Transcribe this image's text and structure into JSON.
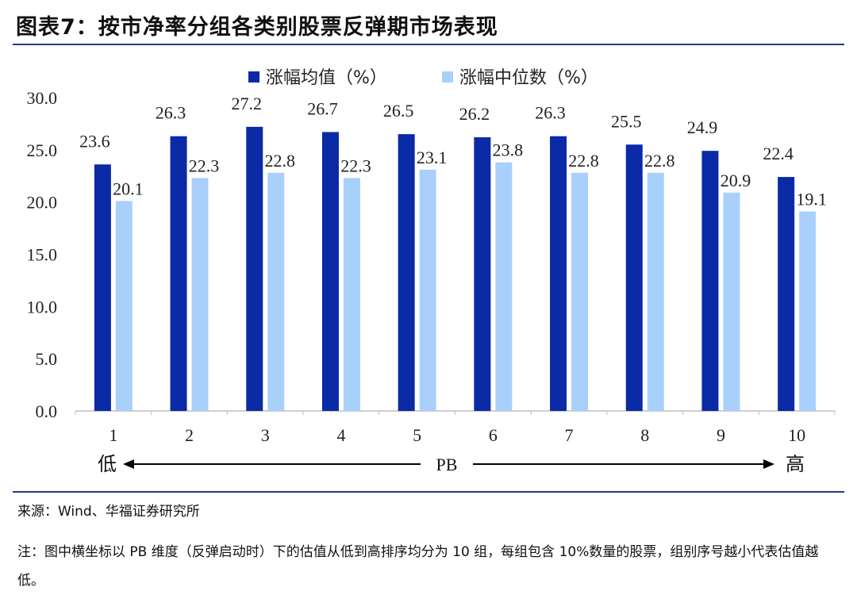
{
  "title": "图表7：按市净率分组各类别股票反弹期市场表现",
  "chart_data": {
    "type": "bar",
    "categories": [
      "1",
      "2",
      "3",
      "4",
      "5",
      "6",
      "7",
      "8",
      "9",
      "10"
    ],
    "series": [
      {
        "name": "涨幅均值（%）",
        "color": "#0a2aa6",
        "values": [
          23.6,
          26.3,
          27.2,
          26.7,
          26.5,
          26.2,
          26.3,
          25.5,
          24.9,
          22.4
        ]
      },
      {
        "name": "涨幅中位数（%）",
        "color": "#a9d0fb",
        "values": [
          20.1,
          22.3,
          22.8,
          22.3,
          23.1,
          23.8,
          22.8,
          22.8,
          20.9,
          19.1
        ]
      }
    ],
    "ylim": [
      0,
      30
    ],
    "yticks": [
      "0.0",
      "5.0",
      "10.0",
      "15.0",
      "20.0",
      "25.0",
      "30.0"
    ],
    "legend_position": "top",
    "grid": false,
    "xaxis_annotation": {
      "left": "低",
      "center": "PB",
      "right": "高"
    }
  },
  "source": "来源：Wind、华福证券研究所",
  "note": "注：图中横坐标以 PB 维度（反弹启动时）下的估值从低到高排序均分为 10 组，每组包含 10%数量的股票，组别序号越小代表估值越低。"
}
